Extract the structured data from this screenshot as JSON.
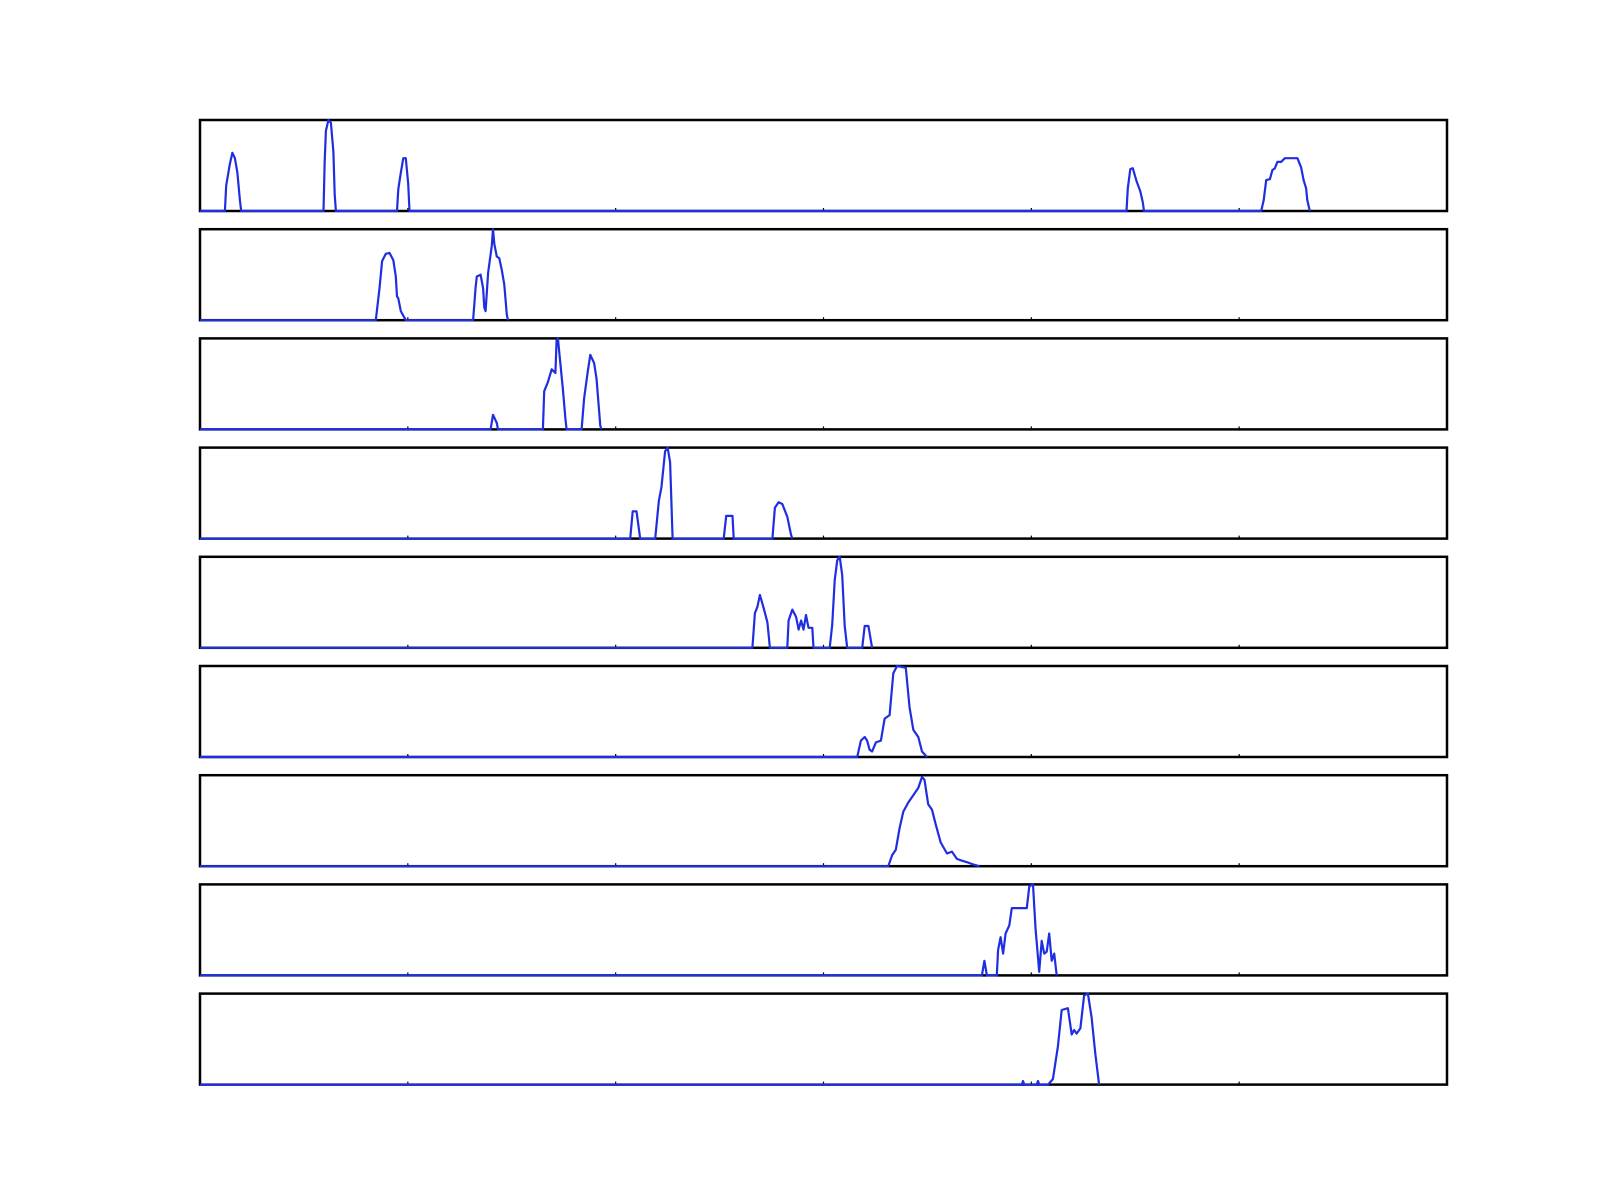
{
  "chart_data": {
    "type": "line",
    "panels": 9,
    "shared_x": true,
    "xlim": [
      0,
      100
    ],
    "ylim": [
      0,
      1
    ],
    "axes_visible": false,
    "grid": false,
    "line_color": "#1f2ee0",
    "series": [
      {
        "points": [
          [
            0,
            0
          ],
          [
            2.0,
            0
          ],
          [
            2.1,
            0.28
          ],
          [
            2.4,
            0.52
          ],
          [
            2.6,
            0.64
          ],
          [
            2.8,
            0.58
          ],
          [
            3.0,
            0.42
          ],
          [
            3.2,
            0.12
          ],
          [
            3.3,
            0
          ],
          [
            9.9,
            0
          ],
          [
            10.0,
            0.55
          ],
          [
            10.1,
            0.88
          ],
          [
            10.3,
            1.0
          ],
          [
            10.5,
            0.97
          ],
          [
            10.7,
            0.65
          ],
          [
            10.8,
            0.18
          ],
          [
            10.9,
            0
          ],
          [
            15.8,
            0
          ],
          [
            15.9,
            0.24
          ],
          [
            16.1,
            0.42
          ],
          [
            16.3,
            0.58
          ],
          [
            16.5,
            0.58
          ],
          [
            16.7,
            0.3
          ],
          [
            16.8,
            0
          ],
          [
            74.3,
            0
          ],
          [
            74.4,
            0.25
          ],
          [
            74.6,
            0.46
          ],
          [
            74.8,
            0.47
          ],
          [
            75.1,
            0.33
          ],
          [
            75.4,
            0.22
          ],
          [
            75.6,
            0.1
          ],
          [
            75.7,
            0
          ],
          [
            85.1,
            0
          ],
          [
            85.3,
            0.12
          ],
          [
            85.5,
            0.34
          ],
          [
            85.8,
            0.35
          ],
          [
            86.0,
            0.45
          ],
          [
            86.2,
            0.47
          ],
          [
            86.4,
            0.54
          ],
          [
            86.7,
            0.54
          ],
          [
            87.0,
            0.58
          ],
          [
            88.0,
            0.58
          ],
          [
            88.3,
            0.48
          ],
          [
            88.5,
            0.34
          ],
          [
            88.7,
            0.25
          ],
          [
            88.8,
            0.12
          ],
          [
            89.0,
            0
          ]
        ]
      },
      {
        "points": [
          [
            0,
            0
          ],
          [
            14.1,
            0
          ],
          [
            14.4,
            0.36
          ],
          [
            14.6,
            0.65
          ],
          [
            14.9,
            0.73
          ],
          [
            15.2,
            0.74
          ],
          [
            15.5,
            0.66
          ],
          [
            15.7,
            0.48
          ],
          [
            15.8,
            0.26
          ],
          [
            15.9,
            0.24
          ],
          [
            16.1,
            0.1
          ],
          [
            16.5,
            0
          ],
          [
            21.9,
            0
          ],
          [
            22.1,
            0.36
          ],
          [
            22.2,
            0.48
          ],
          [
            22.5,
            0.5
          ],
          [
            22.7,
            0.35
          ],
          [
            22.8,
            0.14
          ],
          [
            22.9,
            0.1
          ],
          [
            23.1,
            0.52
          ],
          [
            23.4,
            0.82
          ],
          [
            23.5,
            1.0
          ],
          [
            23.6,
            0.84
          ],
          [
            23.8,
            0.7
          ],
          [
            24.0,
            0.68
          ],
          [
            24.2,
            0.55
          ],
          [
            24.4,
            0.39
          ],
          [
            24.6,
            0.06
          ],
          [
            24.7,
            0
          ]
        ]
      },
      {
        "points": [
          [
            0,
            0
          ],
          [
            23.3,
            0
          ],
          [
            23.5,
            0.16
          ],
          [
            23.8,
            0.07
          ],
          [
            23.9,
            0
          ],
          [
            27.5,
            0
          ],
          [
            27.6,
            0.42
          ],
          [
            27.9,
            0.52
          ],
          [
            28.2,
            0.66
          ],
          [
            28.5,
            0.62
          ],
          [
            28.6,
            0.98
          ],
          [
            28.7,
            1.0
          ],
          [
            28.9,
            0.72
          ],
          [
            29.1,
            0.44
          ],
          [
            29.3,
            0.12
          ],
          [
            29.4,
            0
          ],
          [
            30.6,
            0
          ],
          [
            30.8,
            0.34
          ],
          [
            31.1,
            0.64
          ],
          [
            31.3,
            0.82
          ],
          [
            31.6,
            0.73
          ],
          [
            31.8,
            0.56
          ],
          [
            32.1,
            0.04
          ],
          [
            32.2,
            0
          ]
        ]
      },
      {
        "points": [
          [
            0,
            0
          ],
          [
            34.5,
            0
          ],
          [
            34.7,
            0.3
          ],
          [
            35.0,
            0.3
          ],
          [
            35.3,
            0
          ],
          [
            36.5,
            0
          ],
          [
            36.8,
            0.42
          ],
          [
            37.0,
            0.56
          ],
          [
            37.3,
            0.96
          ],
          [
            37.5,
            1.0
          ],
          [
            37.7,
            0.84
          ],
          [
            37.9,
            0
          ],
          [
            42.0,
            0
          ],
          [
            42.2,
            0.25
          ],
          [
            42.7,
            0.25
          ],
          [
            42.8,
            0
          ],
          [
            45.9,
            0
          ],
          [
            46.1,
            0.34
          ],
          [
            46.4,
            0.4
          ],
          [
            46.7,
            0.38
          ],
          [
            47.1,
            0.24
          ],
          [
            47.4,
            0.04
          ],
          [
            47.5,
            0
          ]
        ]
      },
      {
        "points": [
          [
            0,
            0
          ],
          [
            44.3,
            0
          ],
          [
            44.5,
            0.38
          ],
          [
            44.7,
            0.45
          ],
          [
            44.9,
            0.58
          ],
          [
            45.2,
            0.44
          ],
          [
            45.5,
            0.28
          ],
          [
            45.7,
            0
          ],
          [
            47.1,
            0
          ],
          [
            47.2,
            0.3
          ],
          [
            47.5,
            0.42
          ],
          [
            47.8,
            0.34
          ],
          [
            48.0,
            0.2
          ],
          [
            48.2,
            0.3
          ],
          [
            48.4,
            0.2
          ],
          [
            48.6,
            0.36
          ],
          [
            48.8,
            0.22
          ],
          [
            49.1,
            0.22
          ],
          [
            49.2,
            0
          ],
          [
            50.5,
            0
          ],
          [
            50.7,
            0.25
          ],
          [
            50.9,
            0.74
          ],
          [
            51.1,
            0.96
          ],
          [
            51.3,
            1.0
          ],
          [
            51.5,
            0.8
          ],
          [
            51.7,
            0.24
          ],
          [
            51.9,
            0
          ],
          [
            53.1,
            0
          ],
          [
            53.3,
            0.24
          ],
          [
            53.6,
            0.24
          ],
          [
            53.9,
            0
          ]
        ]
      },
      {
        "points": [
          [
            0,
            0
          ],
          [
            52.7,
            0
          ],
          [
            53.0,
            0.18
          ],
          [
            53.3,
            0.22
          ],
          [
            53.5,
            0.18
          ],
          [
            53.7,
            0.08
          ],
          [
            53.9,
            0.06
          ],
          [
            54.2,
            0.16
          ],
          [
            54.6,
            0.18
          ],
          [
            54.9,
            0.42
          ],
          [
            55.3,
            0.46
          ],
          [
            55.6,
            0.92
          ],
          [
            55.9,
            1.0
          ],
          [
            56.6,
            0.98
          ],
          [
            56.9,
            0.55
          ],
          [
            57.2,
            0.3
          ],
          [
            57.6,
            0.22
          ],
          [
            57.9,
            0.06
          ],
          [
            58.3,
            0
          ]
        ]
      },
      {
        "points": [
          [
            0,
            0
          ],
          [
            55.2,
            0
          ],
          [
            55.5,
            0.12
          ],
          [
            55.8,
            0.18
          ],
          [
            56.1,
            0.42
          ],
          [
            56.4,
            0.6
          ],
          [
            56.8,
            0.7
          ],
          [
            57.2,
            0.78
          ],
          [
            57.6,
            0.86
          ],
          [
            57.9,
            0.98
          ],
          [
            58.1,
            0.95
          ],
          [
            58.4,
            0.68
          ],
          [
            58.7,
            0.62
          ],
          [
            59.0,
            0.46
          ],
          [
            59.4,
            0.26
          ],
          [
            59.9,
            0.14
          ],
          [
            60.3,
            0.16
          ],
          [
            60.7,
            0.08
          ],
          [
            61.1,
            0.06
          ],
          [
            61.6,
            0.04
          ],
          [
            62.0,
            0.02
          ],
          [
            62.5,
            0
          ]
        ]
      },
      {
        "points": [
          [
            0,
            0
          ],
          [
            62.7,
            0
          ],
          [
            62.9,
            0.16
          ],
          [
            63.1,
            0
          ],
          [
            63.9,
            0
          ],
          [
            64.0,
            0.28
          ],
          [
            64.2,
            0.42
          ],
          [
            64.4,
            0.24
          ],
          [
            64.6,
            0.46
          ],
          [
            64.9,
            0.55
          ],
          [
            65.1,
            0.74
          ],
          [
            66.3,
            0.74
          ],
          [
            66.5,
            0.98
          ],
          [
            66.8,
            1.0
          ],
          [
            67.0,
            0.52
          ],
          [
            67.3,
            0.04
          ],
          [
            67.5,
            0.38
          ],
          [
            67.7,
            0.24
          ],
          [
            67.9,
            0.26
          ],
          [
            68.1,
            0.46
          ],
          [
            68.3,
            0.16
          ],
          [
            68.5,
            0.24
          ],
          [
            68.7,
            0
          ]
        ]
      },
      {
        "points": [
          [
            0,
            0
          ],
          [
            65.9,
            0
          ],
          [
            66.0,
            0.04
          ],
          [
            66.1,
            0
          ],
          [
            67.1,
            0
          ],
          [
            67.2,
            0.04
          ],
          [
            67.3,
            0
          ],
          [
            68.0,
            0
          ],
          [
            68.4,
            0.06
          ],
          [
            68.8,
            0.42
          ],
          [
            69.1,
            0.82
          ],
          [
            69.6,
            0.84
          ],
          [
            69.9,
            0.55
          ],
          [
            70.1,
            0.6
          ],
          [
            70.3,
            0.56
          ],
          [
            70.6,
            0.62
          ],
          [
            70.9,
            0.98
          ],
          [
            71.2,
            1.0
          ],
          [
            71.5,
            0.74
          ],
          [
            71.8,
            0.34
          ],
          [
            72.1,
            0
          ]
        ]
      }
    ]
  }
}
